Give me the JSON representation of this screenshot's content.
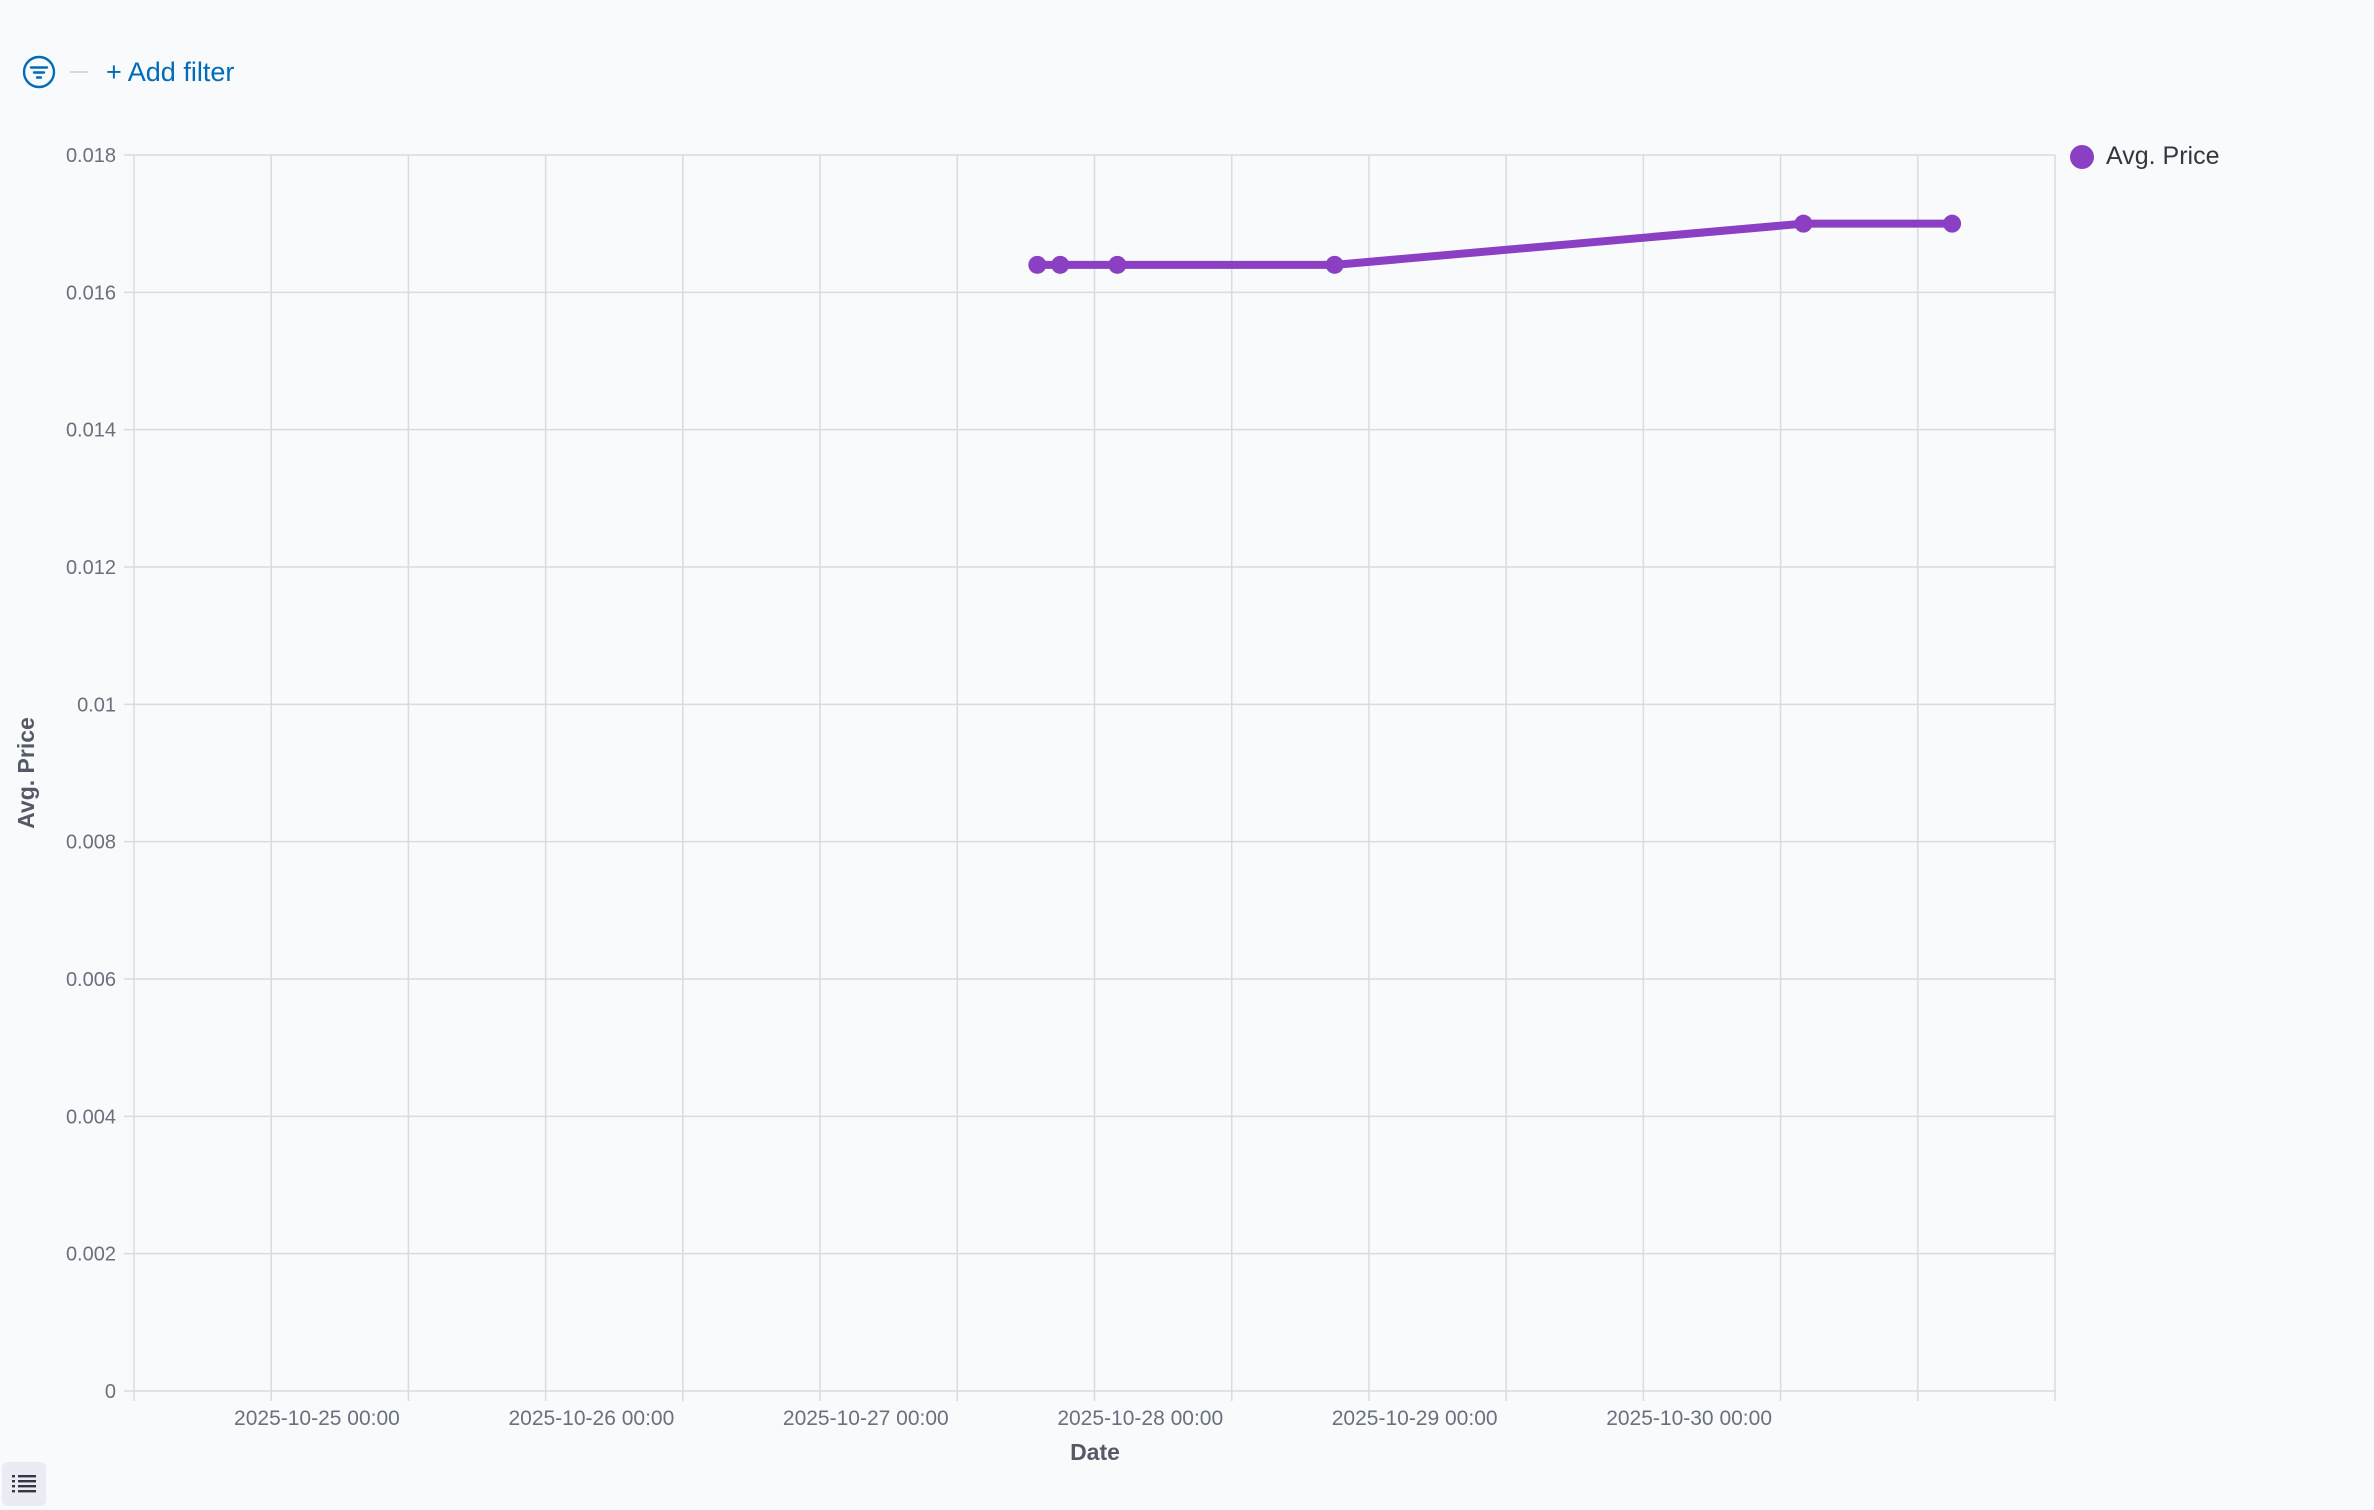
{
  "filter_bar": {
    "icon": "filter-icon",
    "add_filter_label": "+ Add filter"
  },
  "legend": {
    "items": [
      {
        "label": "Avg. Price",
        "color": "#8b3fc3"
      }
    ]
  },
  "bottom_toggle": {
    "icon": "list-icon"
  },
  "colors": {
    "accent": "#006bb8",
    "series": "#8b3fc3",
    "grid": "#d7dbe2",
    "tick_text": "#69707d",
    "axis_title": "#535966"
  },
  "chart_data": {
    "type": "line",
    "title": "",
    "xlabel": "Date",
    "ylabel": "Avg. Price",
    "x_tick_labels": [
      "2025-10-25 00:00",
      "2025-10-26 00:00",
      "2025-10-27 00:00",
      "2025-10-28 00:00",
      "2025-10-29 00:00",
      "2025-10-30 00:00"
    ],
    "y_tick_labels": [
      "0",
      "0.002",
      "0.004",
      "0.006",
      "0.008",
      "0.01",
      "0.012",
      "0.014",
      "0.016",
      "0.018"
    ],
    "xlim": [
      "2025-10-24 08:00",
      "2025-10-31 08:00"
    ],
    "ylim": [
      0,
      0.018
    ],
    "grid": true,
    "legend_position": "top-right",
    "series": [
      {
        "name": "Avg. Price",
        "color": "#8b3fc3",
        "points": [
          {
            "x": "2025-10-27 15:00",
            "y": 0.0164
          },
          {
            "x": "2025-10-27 17:00",
            "y": 0.0164
          },
          {
            "x": "2025-10-27 22:00",
            "y": 0.0164
          },
          {
            "x": "2025-10-28 17:00",
            "y": 0.0164
          },
          {
            "x": "2025-10-30 10:00",
            "y": 0.017
          },
          {
            "x": "2025-10-30 23:00",
            "y": 0.017
          }
        ]
      }
    ]
  }
}
